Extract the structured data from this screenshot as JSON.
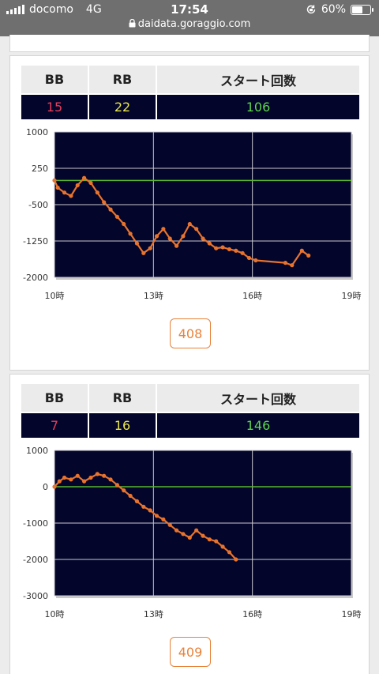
{
  "status_bar": {
    "carrier": "docomo",
    "network": "4G",
    "time": "17:54",
    "url": "daidata.goraggio.com",
    "battery": "60%",
    "battery_level": 0.6
  },
  "machines": [
    {
      "headers": {
        "bb": "BB",
        "rb": "RB",
        "start": "スタート回数"
      },
      "values": {
        "bb": "15",
        "rb": "22",
        "start": "106"
      },
      "page_button": "408",
      "chart_data": {
        "type": "line",
        "xlim": [
          10,
          19
        ],
        "x_ticks": [
          10,
          13,
          16,
          19
        ],
        "x_tick_labels": [
          "10時",
          "13時",
          "16時",
          "19時"
        ],
        "ylim": [
          -2000,
          1000
        ],
        "y_ticks": [
          1000,
          250,
          -500,
          -1250,
          -2000
        ],
        "y_tick_labels": [
          "1000",
          "250",
          "-500",
          "-1250",
          "-2000"
        ],
        "reference_line": 0,
        "grid": true,
        "colors": {
          "line": "#e8732c",
          "reference": "#58b82c",
          "background": "#03052a",
          "grid": "#c8c8d0"
        },
        "x": [
          10.0,
          10.1,
          10.3,
          10.5,
          10.7,
          10.9,
          11.1,
          11.3,
          11.5,
          11.7,
          11.9,
          12.1,
          12.3,
          12.5,
          12.7,
          12.9,
          13.1,
          13.3,
          13.5,
          13.7,
          13.9,
          14.1,
          14.3,
          14.5,
          14.7,
          14.9,
          15.1,
          15.3,
          15.5,
          15.7,
          15.9,
          16.1,
          17.0,
          17.2,
          17.5,
          17.7
        ],
        "y": [
          0,
          -150,
          -250,
          -320,
          -100,
          50,
          -50,
          -250,
          -450,
          -600,
          -750,
          -900,
          -1100,
          -1300,
          -1500,
          -1400,
          -1150,
          -1000,
          -1200,
          -1350,
          -1150,
          -900,
          -1000,
          -1200,
          -1300,
          -1400,
          -1380,
          -1420,
          -1450,
          -1500,
          -1600,
          -1650,
          -1700,
          -1750,
          -1450,
          -1550
        ]
      }
    },
    {
      "headers": {
        "bb": "BB",
        "rb": "RB",
        "start": "スタート回数"
      },
      "values": {
        "bb": "7",
        "rb": "16",
        "start": "146"
      },
      "page_button": "409",
      "chart_data": {
        "type": "line",
        "xlim": [
          10,
          19
        ],
        "x_ticks": [
          10,
          13,
          16,
          19
        ],
        "x_tick_labels": [
          "10時",
          "13時",
          "16時",
          "19時"
        ],
        "ylim": [
          -3000,
          1000
        ],
        "y_ticks": [
          1000,
          0,
          -1000,
          -2000,
          -3000
        ],
        "y_tick_labels": [
          "1000",
          "0",
          "-1000",
          "-2000",
          "-3000"
        ],
        "reference_line": 0,
        "grid": true,
        "colors": {
          "line": "#e8732c",
          "reference": "#58b82c",
          "background": "#03052a",
          "grid": "#c8c8d0"
        },
        "x": [
          10.0,
          10.15,
          10.3,
          10.5,
          10.7,
          10.9,
          11.1,
          11.3,
          11.5,
          11.7,
          11.9,
          12.1,
          12.3,
          12.5,
          12.7,
          12.9,
          13.1,
          13.3,
          13.5,
          13.7,
          13.9,
          14.1,
          14.3,
          14.5,
          14.7,
          14.9,
          15.1,
          15.3,
          15.5
        ],
        "y": [
          0,
          150,
          250,
          200,
          300,
          150,
          250,
          350,
          300,
          200,
          50,
          -100,
          -250,
          -400,
          -550,
          -650,
          -800,
          -900,
          -1050,
          -1200,
          -1300,
          -1400,
          -1200,
          -1350,
          -1450,
          -1500,
          -1650,
          -1800,
          -2000
        ]
      }
    }
  ]
}
